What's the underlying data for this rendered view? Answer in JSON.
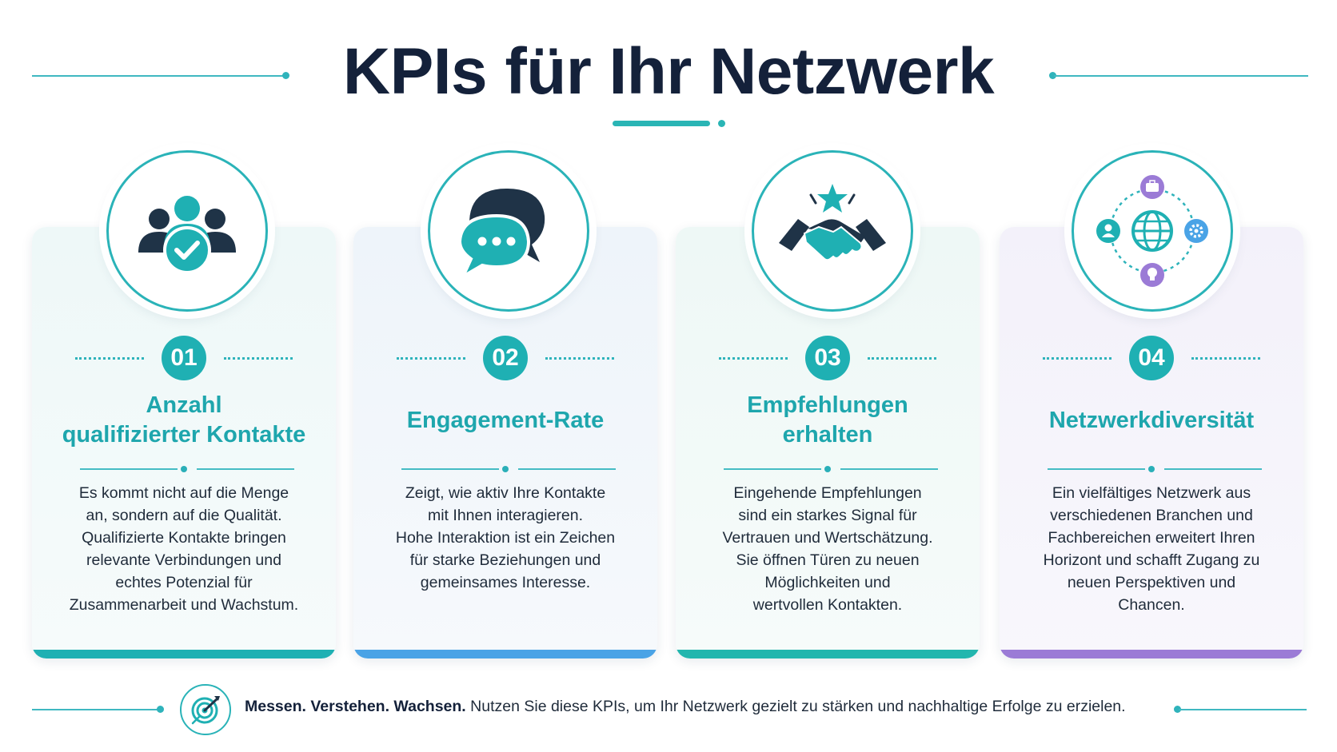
{
  "title": "KPIs für Ihr Netzwerk",
  "colors": {
    "teal": "#1fb0b3",
    "navy": "#1f3347",
    "blue_bar": "#4aa3e6",
    "purple": "#9b7bd6"
  },
  "cards": [
    {
      "number": "01",
      "title": "Anzahl\nqualifizierter Kontakte",
      "text": "Es kommt nicht auf die Menge\nan, sondern auf die Qualität.\nQualifizierte Kontakte bringen\nrelevante Verbindungen und\nechtes Potenzial für\nZusammenarbeit und Wachstum.",
      "icon": "users-check-icon"
    },
    {
      "number": "02",
      "title": "Engagement-Rate",
      "text": "Zeigt, wie aktiv Ihre Kontakte\nmit Ihnen interagieren.\nHohe Interaktion ist ein Zeichen\nfür starke Beziehungen und\ngemeinsames Interesse.",
      "icon": "chat-bubbles-icon"
    },
    {
      "number": "03",
      "title": "Empfehlungen\nerhalten",
      "text": "Eingehende Empfehlungen\nsind ein starkes Signal für\nVertrauen und Wertschätzung.\nSie öffnen Türen zu neuen\nMöglichkeiten und\nwertvollen Kontakten.",
      "icon": "handshake-star-icon"
    },
    {
      "number": "04",
      "title": "Netzwerkdiversität",
      "text": "Ein vielfältiges Netzwerk aus\nverschiedenen Branchen und\nFachbereichen erweitert Ihren\nHorizont und schafft Zugang zu\nneuen Perspektiven und\nChancen.",
      "icon": "globe-network-icon"
    }
  ],
  "footer": {
    "bold": "Messen. Verstehen. Wachsen.",
    "text": " Nutzen Sie diese KPIs, um Ihr Netzwerk gezielt zu stärken und nachhaltige Erfolge zu erzielen.",
    "icon": "target-arrow-icon"
  }
}
